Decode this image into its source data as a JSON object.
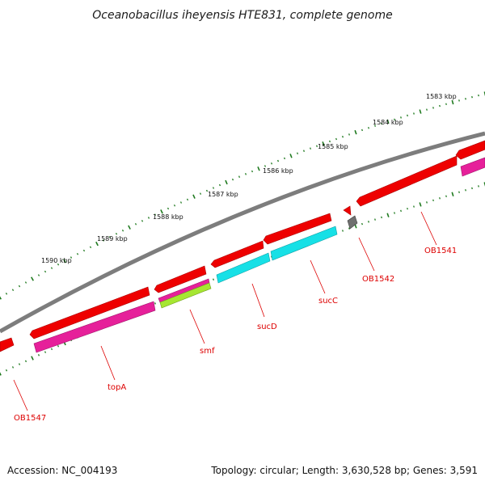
{
  "title": "Oceanobacillus iheyensis HTE831, complete genome",
  "footer": {
    "accession": "Accession: NC_004193",
    "summary": "Topology: circular; Length: 3,630,528 bp; Genes: 3,591"
  },
  "colors": {
    "backbone": "#7d7d7d",
    "tick": "#1f7a1f",
    "label": "#dd0000",
    "cds_forward": "#ee0000",
    "cds_reverse": "#e6209a",
    "cds_cyan": "#17e0e6",
    "cds_green": "#a6e632",
    "cds_gray": "#707070"
  },
  "scale_labels": [
    "1583 kbp",
    "1584 kbp",
    "1585 kbp",
    "1586 kbp",
    "1587 kbp",
    "1588 kbp",
    "1589 kbp",
    "1590 kbp"
  ],
  "gene_labels": [
    "OB1541",
    "OB1542",
    "sucC",
    "sucD",
    "smf",
    "topA",
    "OB1547"
  ]
}
